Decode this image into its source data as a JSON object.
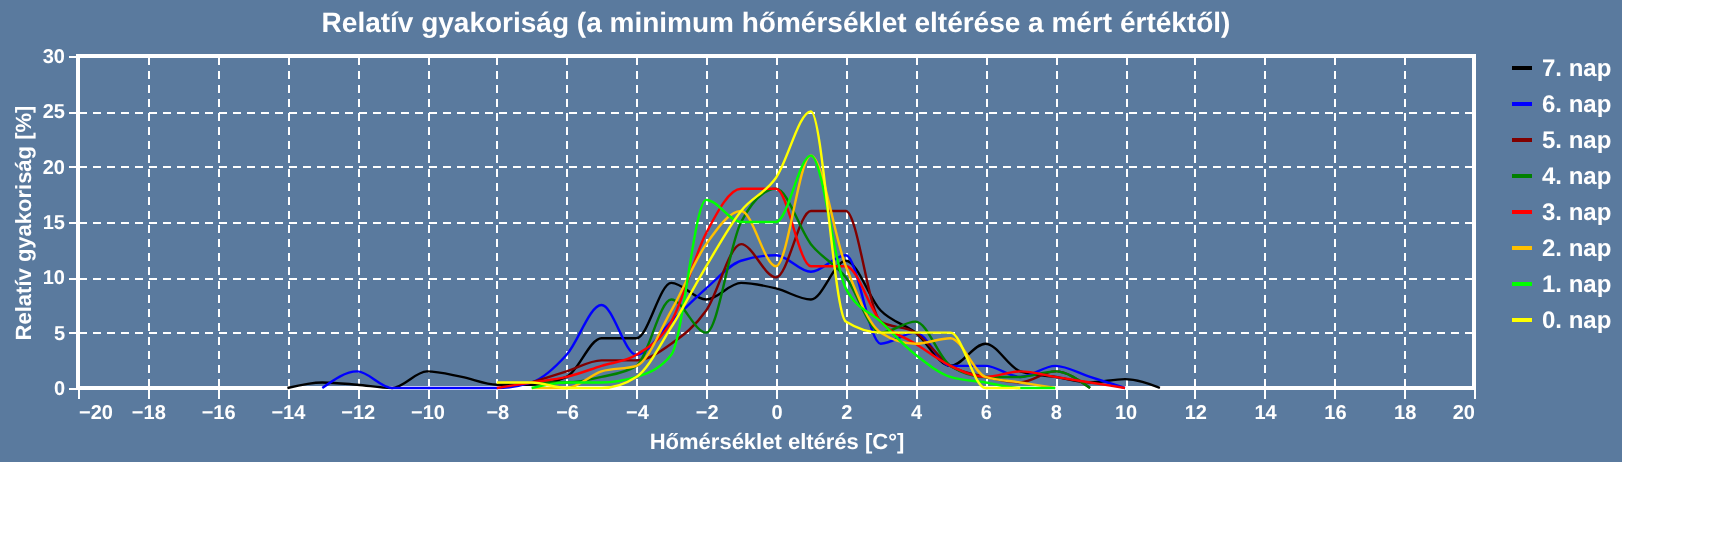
{
  "chart_data": {
    "type": "line",
    "title": "Relatív gyakoriság (a minimum hőmérséklet eltérése a mért értéktől)",
    "xlabel": "Hőmérséklet eltérés [C°]",
    "ylabel": "Relatív gyakoriság [%]",
    "xlim": [
      -20,
      20
    ],
    "xticks": [
      -20,
      -18,
      -16,
      -14,
      -12,
      -10,
      -8,
      -6,
      -4,
      -2,
      0,
      2,
      4,
      6,
      8,
      10,
      12,
      14,
      16,
      18,
      20
    ],
    "ylim": [
      0,
      30
    ],
    "yticks": [
      0,
      5,
      10,
      15,
      20,
      25,
      30
    ],
    "grid": true,
    "legend": "right",
    "marker": "none",
    "line_style": "solid",
    "series": [
      {
        "name": "7. nap",
        "color": "#000000",
        "x": [
          -14,
          -13,
          -12,
          -11,
          -10,
          -9,
          -8,
          -7,
          -6,
          -5,
          -4,
          -3,
          -2,
          -1,
          0,
          1,
          2,
          3,
          4,
          5,
          6,
          7,
          8,
          9,
          10,
          11
        ],
        "values": [
          0,
          0.5,
          0.3,
          0,
          1.5,
          1,
          0.3,
          0.3,
          1,
          4.5,
          4.5,
          9.5,
          8,
          9.5,
          9,
          8,
          11.5,
          7,
          5,
          2,
          4,
          1.5,
          1,
          0.5,
          0.8,
          0
        ]
      },
      {
        "name": "6. nap",
        "color": "#0000ff",
        "x": [
          -13,
          -12,
          -11,
          -10,
          -9,
          -8,
          -7,
          -6,
          -5,
          -4,
          -3,
          -2,
          -1,
          0,
          1,
          2,
          3,
          4,
          5,
          6,
          7,
          8,
          9,
          10
        ],
        "values": [
          0,
          1.5,
          0,
          0,
          0,
          0,
          0.5,
          3,
          7.5,
          3,
          6,
          9,
          11.5,
          12,
          10.5,
          12,
          4,
          5,
          2,
          2,
          1,
          2,
          1,
          0
        ]
      },
      {
        "name": "5. nap",
        "color": "#800000",
        "x": [
          -7,
          -6,
          -5,
          -4,
          -3,
          -2,
          -1,
          0,
          1,
          2,
          3,
          4,
          5,
          6,
          7,
          8,
          9
        ],
        "values": [
          0.5,
          1.5,
          2.5,
          2.5,
          4,
          7,
          13,
          10,
          16,
          16,
          6,
          5,
          2,
          1,
          0.5,
          1.5,
          0
        ]
      },
      {
        "name": "4. nap",
        "color": "#008000",
        "x": [
          -7,
          -6,
          -5,
          -4,
          -3,
          -2,
          -1,
          0,
          1,
          2,
          3,
          4,
          5,
          6,
          7,
          8,
          9
        ],
        "values": [
          0.5,
          0.5,
          1,
          2,
          8,
          5,
          15,
          18,
          13,
          10,
          5,
          6,
          2,
          1,
          1,
          1.5,
          0
        ]
      },
      {
        "name": "3. nap",
        "color": "#ff0000",
        "x": [
          -8,
          -7,
          -6,
          -5,
          -4,
          -3,
          -2,
          -1,
          0,
          1,
          2,
          3,
          4,
          5,
          6,
          7,
          8,
          9,
          10
        ],
        "values": [
          0,
          0.5,
          1,
          2,
          3,
          6,
          14,
          18,
          18,
          11,
          11,
          6,
          4,
          2,
          1,
          1.5,
          1,
          0.5,
          0
        ]
      },
      {
        "name": "2. nap",
        "color": "#ffc000",
        "x": [
          -7,
          -6,
          -5,
          -4,
          -3,
          -2,
          -1,
          0,
          1,
          2,
          3,
          4,
          5,
          6,
          7,
          8
        ],
        "values": [
          0,
          0,
          1.5,
          2,
          7,
          13,
          16,
          11,
          21,
          11,
          5,
          4,
          4.5,
          1,
          0.5,
          0
        ]
      },
      {
        "name": "1. nap",
        "color": "#00ff00",
        "x": [
          -7,
          -6,
          -5,
          -4,
          -3,
          -2,
          -1,
          0,
          1,
          2,
          3,
          4,
          5,
          6,
          7,
          8
        ],
        "values": [
          0,
          0.5,
          0.5,
          1,
          3,
          17,
          15,
          15,
          21,
          9,
          6,
          3,
          1,
          0.5,
          0,
          0
        ]
      },
      {
        "name": "0. nap",
        "color": "#ffff00",
        "x": [
          -8,
          -7,
          -6,
          -5,
          -4,
          -3,
          -2,
          -1,
          0,
          1,
          2,
          3,
          4,
          5,
          6,
          7
        ],
        "values": [
          0.5,
          0.5,
          0,
          0,
          1,
          5.5,
          11,
          16,
          19,
          25,
          6,
          5,
          5,
          5,
          0,
          0
        ]
      }
    ]
  }
}
